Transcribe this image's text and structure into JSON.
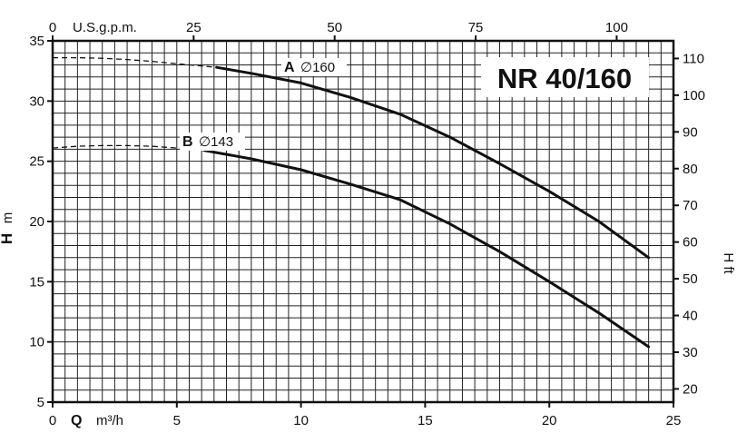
{
  "chart_data": {
    "type": "line",
    "title": "NR 40/160",
    "x_bottom": {
      "label_q": "Q",
      "label_unit": "m³/h",
      "range": [
        0,
        25
      ],
      "ticks": [
        0,
        5,
        10,
        15,
        20,
        25
      ]
    },
    "x_top": {
      "label": "U.S.g.p.m.",
      "range": [
        0,
        110.07
      ],
      "ticks": [
        0,
        25,
        50,
        75,
        100
      ]
    },
    "y_left": {
      "label_h": "H",
      "label_unit": "m",
      "range": [
        5,
        35
      ],
      "ticks": [
        5,
        10,
        15,
        20,
        25,
        30,
        35
      ]
    },
    "y_right": {
      "label": "H ft",
      "range": [
        16.4,
        114.8
      ],
      "ticks": [
        20,
        30,
        40,
        50,
        60,
        70,
        80,
        90,
        100,
        110
      ]
    },
    "grid": true,
    "series": [
      {
        "name": "A",
        "diameter": "∅160",
        "dashed_x": [
          0,
          1,
          2,
          3,
          4,
          5,
          6.6
        ],
        "dashed_y": [
          33.6,
          33.6,
          33.55,
          33.45,
          33.3,
          33.1,
          32.8
        ],
        "solid_x": [
          6.6,
          8,
          10,
          12,
          14,
          16,
          18,
          20,
          22,
          24
        ],
        "solid_y": [
          32.8,
          32.3,
          31.5,
          30.3,
          28.9,
          27.0,
          24.8,
          22.5,
          20.0,
          17.0
        ]
      },
      {
        "name": "B",
        "diameter": "∅143",
        "dashed_x": [
          0,
          1,
          2,
          3,
          4,
          5,
          6.1
        ],
        "dashed_y": [
          26.1,
          26.25,
          26.3,
          26.3,
          26.25,
          26.1,
          25.9
        ],
        "solid_x": [
          6.1,
          8,
          10,
          12,
          14,
          16,
          18,
          20,
          22,
          24
        ],
        "solid_y": [
          25.9,
          25.2,
          24.3,
          23.1,
          21.8,
          19.8,
          17.5,
          15.0,
          12.4,
          9.6
        ]
      }
    ]
  }
}
